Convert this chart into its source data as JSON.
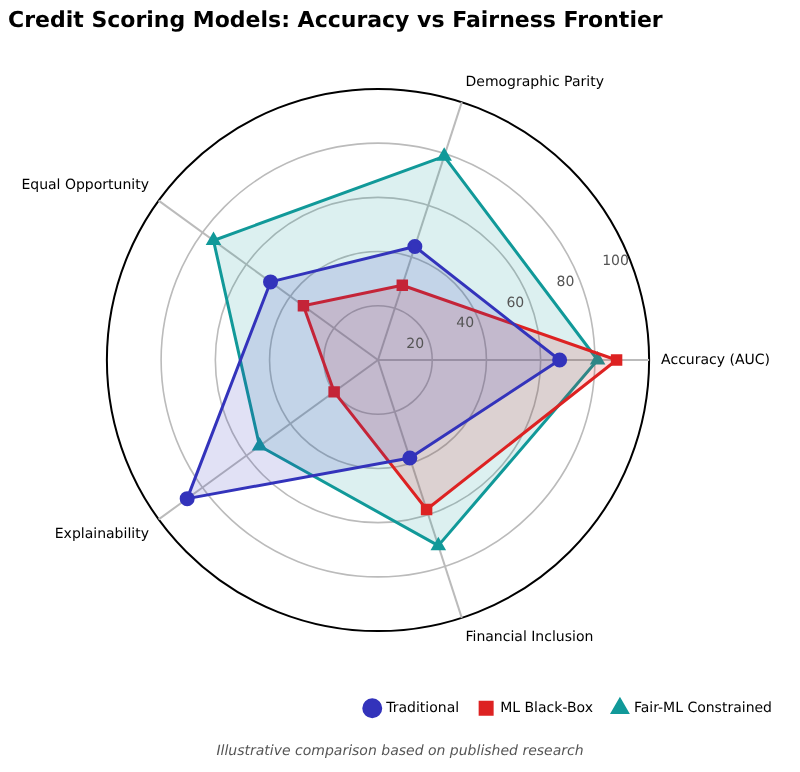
{
  "chart_data": {
    "type": "radar",
    "title": "Credit Scoring Models: Accuracy vs Fairness Frontier",
    "categories": [
      "Demographic Parity",
      "Accuracy (AUC)",
      "Financial Inclusion",
      "Explainability",
      "Equal Opportunity"
    ],
    "series": [
      {
        "name": "Traditional",
        "color": "#3333bb",
        "marker": "circle",
        "values": [
          44,
          67,
          38,
          87,
          49
        ]
      },
      {
        "name": "ML Black-Box",
        "color": "#dd2222",
        "marker": "square",
        "values": [
          29,
          88,
          58,
          20,
          34
        ]
      },
      {
        "name": "Fair-ML Constrained",
        "color": "#119999",
        "marker": "triangle",
        "values": [
          79,
          81,
          72,
          54,
          75
        ]
      }
    ],
    "ylim": [
      0,
      100
    ],
    "yticks": [
      20,
      40,
      60,
      80,
      100
    ],
    "grid": true,
    "legend": "bottom right",
    "line_style": "solid",
    "annotations": [
      "Illustrative comparison based on published research"
    ]
  }
}
